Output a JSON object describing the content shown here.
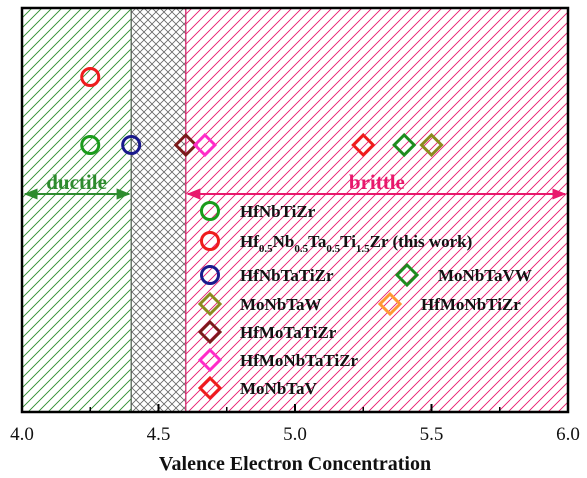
{
  "chart_data": {
    "type": "scatter",
    "title": "",
    "xlabel": "Valence Electron Concentration",
    "ylabel": "",
    "xlim": [
      4.0,
      6.0
    ],
    "x_ticks": [
      "4.0",
      "4.5",
      "5.0",
      "5.5",
      "6.0"
    ],
    "x_tick_values": [
      4.0,
      4.5,
      5.0,
      5.5,
      6.0
    ],
    "grid": false,
    "legend_position": "bottom-center",
    "regions": [
      {
        "label": "ductile",
        "range": [
          4.0,
          4.4
        ],
        "pattern": "hatch",
        "color": "#2e8b2e"
      },
      {
        "label": "",
        "range": [
          4.4,
          4.6
        ],
        "pattern": "crosshatch",
        "color": "#777777"
      },
      {
        "label": "brittle",
        "range": [
          4.6,
          6.0
        ],
        "pattern": "hatch",
        "color": "#e8186c"
      }
    ],
    "series": [
      {
        "name": "HfNbTiZr",
        "marker": "circle",
        "color": "#1a9b1a",
        "points": [
          {
            "x": 4.25,
            "row": 1
          }
        ]
      },
      {
        "name": "Hf0.5Nb0.5Ta0.5Ti1.5Zr (this work)",
        "marker": "circle",
        "color": "#ee1c1c",
        "points": [
          {
            "x": 4.25,
            "row": 2
          }
        ]
      },
      {
        "name": "HfNbTaTiZr",
        "marker": "circle",
        "color": "#1a1a8c",
        "points": [
          {
            "x": 4.4,
            "row": 1
          }
        ]
      },
      {
        "name": "MoNbTaVW",
        "marker": "diamond",
        "color": "#1e8c1e",
        "points": [
          {
            "x": 5.4,
            "row": 1
          }
        ]
      },
      {
        "name": "MoNbTaW",
        "marker": "diamond",
        "color": "#8b8b1e",
        "points": [
          {
            "x": 5.5,
            "row": 1
          }
        ]
      },
      {
        "name": "HfMoNbTiZr",
        "marker": "diamond",
        "color": "#ff9933",
        "points": []
      },
      {
        "name": "HfMoTaTiZr",
        "marker": "diamond",
        "color": "#7a1a1a",
        "points": [
          {
            "x": 4.6,
            "row": 1
          }
        ]
      },
      {
        "name": "HfMoNbTaTiZr",
        "marker": "diamond",
        "color": "#ff2bc8",
        "points": [
          {
            "x": 4.67,
            "row": 1
          }
        ]
      },
      {
        "name": "MoNbTaV",
        "marker": "diamond",
        "color": "#ee1c1c",
        "points": [
          {
            "x": 5.25,
            "row": 1
          }
        ]
      }
    ]
  },
  "legend": {
    "hfnbtizr": "HfNbTiZr",
    "hf": "Hf",
    "sub1": "0.5",
    "nb": "Nb",
    "sub2": "0.5",
    "ta": "Ta",
    "sub3": "0.5",
    "ti": "Ti",
    "sub4": "1.5",
    "zr_this_work": "Zr (this work)",
    "hfnbtatizr": "HfNbTaTiZr",
    "monbtavw": "MoNbTaVW",
    "monbtaw": "MoNbTaW",
    "hfmonbtizr": "HfMoNbTiZr",
    "hfmotatizr": "HfMoTaTiZr",
    "hfmonbtatizr": "HfMoNbTaTiZr",
    "monbtav": "MoNbTaV"
  }
}
